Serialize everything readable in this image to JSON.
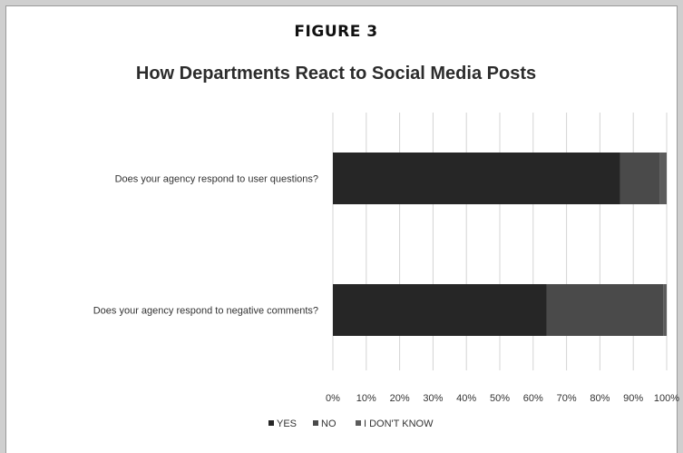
{
  "figure_label": "FIGURE 3",
  "chart_data": {
    "type": "bar",
    "orientation": "horizontal",
    "stacked": "percent",
    "title": "How Departments React to Social Media Posts",
    "categories": [
      "Does your agency respond to user questions?",
      "Does your agency respond to negative comments?"
    ],
    "series": [
      {
        "name": "YES",
        "values": [
          86,
          64
        ],
        "color": "#262626"
      },
      {
        "name": "NO",
        "values": [
          12,
          35
        ],
        "color": "#4a4a4a"
      },
      {
        "name": "I DON'T KNOW",
        "values": [
          2,
          1
        ],
        "color": "#5c5c5c"
      }
    ],
    "xlim": [
      0,
      100
    ],
    "x_ticks": [
      "0%",
      "10%",
      "20%",
      "30%",
      "40%",
      "50%",
      "60%",
      "70%",
      "80%",
      "90%",
      "100%"
    ],
    "grid": true,
    "legend": {
      "position": "bottom",
      "labels": [
        "YES",
        "NO",
        "I DON'T KNOW"
      ]
    }
  }
}
